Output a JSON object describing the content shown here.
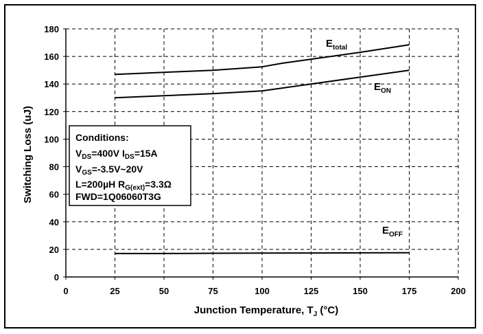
{
  "chart_data": {
    "type": "line",
    "xlabel": "Junction Temperature, T",
    "xlabel_sub": "J",
    "xlabel_unit": " (°C)",
    "ylabel": "Switching Loss (uJ)",
    "xlim": [
      0,
      200
    ],
    "ylim": [
      0,
      180
    ],
    "x_ticks": [
      0,
      25,
      50,
      75,
      100,
      125,
      150,
      175,
      200
    ],
    "y_ticks": [
      0,
      20,
      40,
      60,
      80,
      100,
      120,
      140,
      160,
      180
    ],
    "grid": true,
    "series": [
      {
        "name": "E",
        "name_sub": "total",
        "x": [
          25,
          50,
          75,
          100,
          110,
          125,
          150,
          175
        ],
        "y": [
          147,
          148.5,
          150,
          152.5,
          155,
          158,
          163,
          168.5
        ]
      },
      {
        "name": "E",
        "name_sub": "ON",
        "x": [
          25,
          50,
          75,
          100,
          110,
          125,
          150,
          175
        ],
        "y": [
          130,
          131.5,
          133,
          135,
          137,
          140,
          145,
          150
        ]
      },
      {
        "name": "E",
        "name_sub": "OFF",
        "x": [
          25,
          50,
          75,
          100,
          125,
          150,
          175
        ],
        "y": [
          17,
          17,
          17.2,
          17.3,
          17.4,
          17.5,
          17.6
        ]
      }
    ],
    "conditions": {
      "title": "Conditions:",
      "line1": {
        "a": "V",
        "a_sub": "DS",
        "b": "=400V I",
        "b_sub": "DS",
        "c": "=15A"
      },
      "line2": {
        "a": "V",
        "a_sub": "GS",
        "b": "=-3.5V~20V"
      },
      "line3": {
        "a": "L=200µH  R",
        "a_sub": "G(ext)",
        "b": "=3.3Ω"
      },
      "line4": "FWD=1Q06060T3G"
    }
  }
}
